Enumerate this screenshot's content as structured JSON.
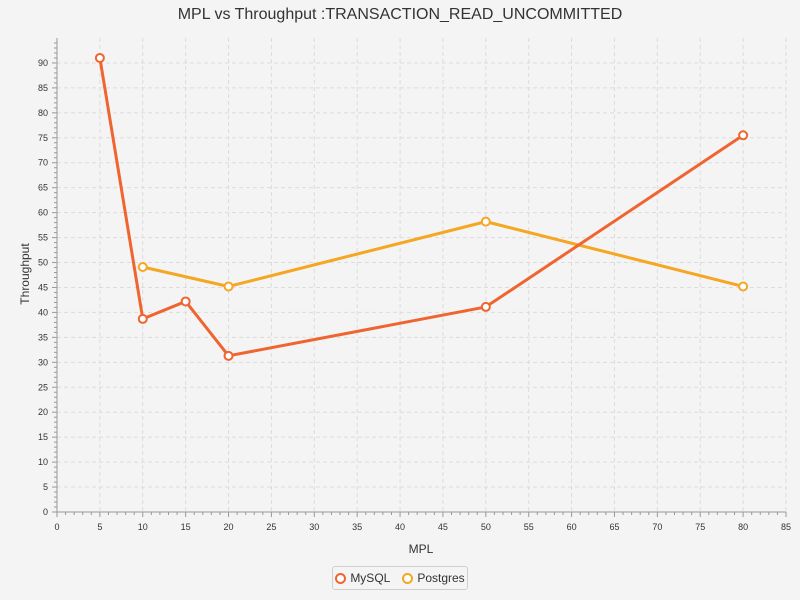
{
  "chart_data": {
    "type": "line",
    "title": "MPL vs Throughput :TRANSACTION_READ_UNCOMMITTED",
    "xlabel": "MPL",
    "ylabel": "Throughput",
    "xlim": [
      0,
      85
    ],
    "ylim": [
      0,
      95
    ],
    "x_ticks": [
      "0",
      "5",
      "10",
      "15",
      "20",
      "25",
      "30",
      "35",
      "40",
      "45",
      "50",
      "55",
      "60",
      "65",
      "70",
      "75",
      "80",
      "85"
    ],
    "y_ticks": [
      "0",
      "5",
      "10",
      "15",
      "20",
      "25",
      "30",
      "35",
      "40",
      "45",
      "50",
      "55",
      "60",
      "65",
      "70",
      "75",
      "80",
      "85",
      "90"
    ],
    "grid": true,
    "legend_position": "bottom",
    "series": [
      {
        "name": "MySQL",
        "color": "#f0642f",
        "points": [
          [
            5,
            91.0
          ],
          [
            10,
            38.7
          ],
          [
            15,
            42.2
          ],
          [
            20,
            31.3
          ],
          [
            50,
            41.1
          ],
          [
            80,
            75.5
          ]
        ]
      },
      {
        "name": "Postgres",
        "color": "#f5a623",
        "points": [
          [
            10,
            49.1
          ],
          [
            20,
            45.2
          ],
          [
            50,
            58.2
          ],
          [
            80,
            45.2
          ]
        ]
      }
    ]
  }
}
